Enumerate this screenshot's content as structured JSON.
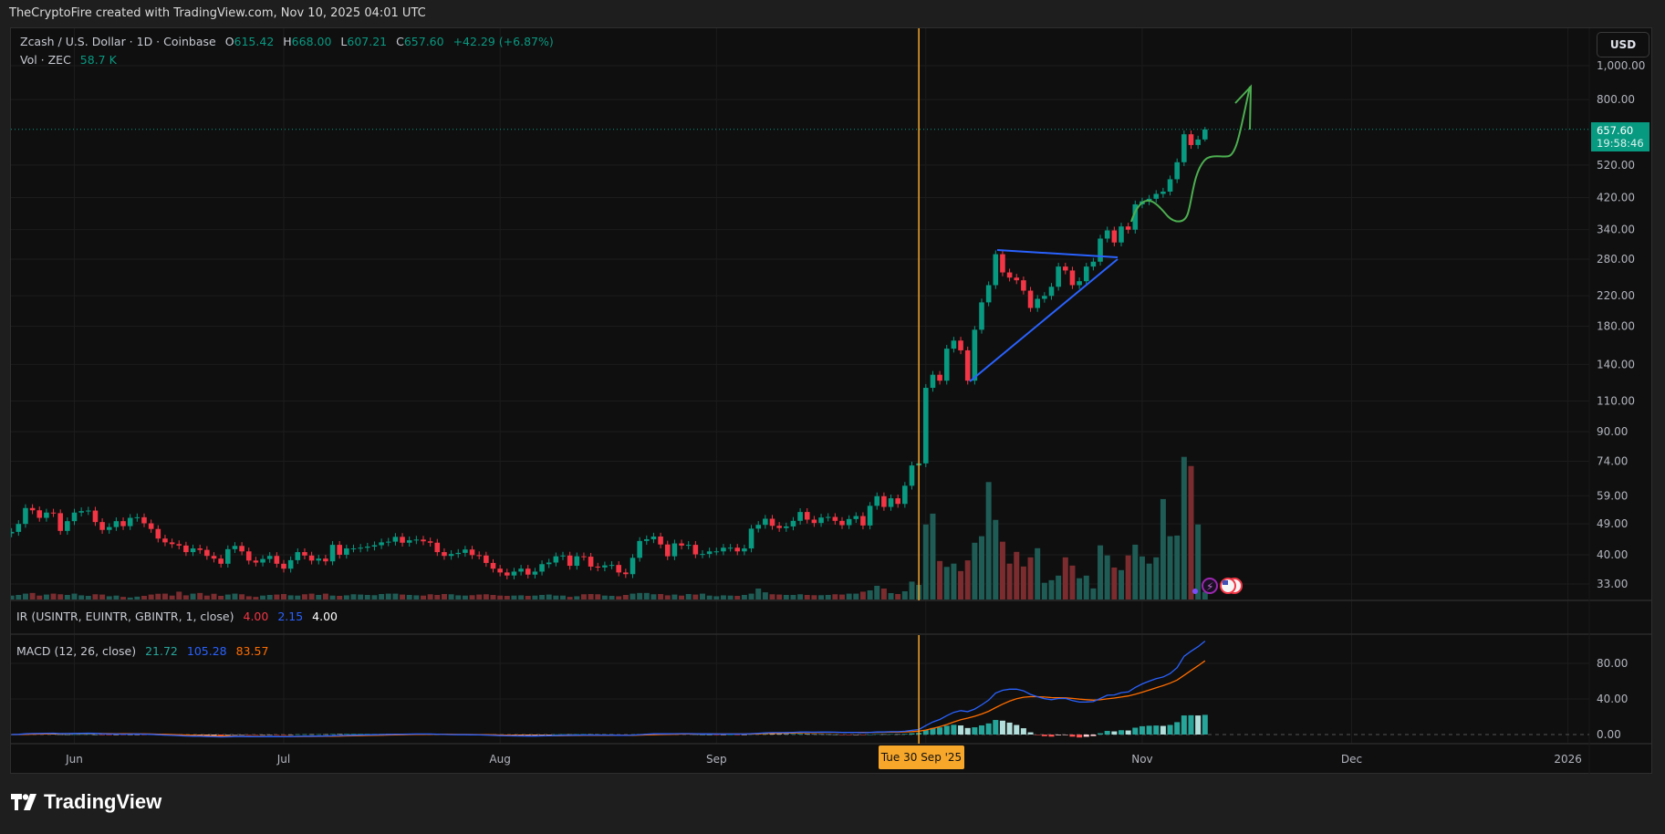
{
  "watermark_header": "TheCryptoFire created with TradingView.com, Nov 10, 2025 04:01 UTC",
  "footer": {
    "brand": "TradingView"
  },
  "symbol_legend": {
    "title": "Zcash / U.S. Dollar · 1D · Coinbase",
    "o_label": "O",
    "o": "615.42",
    "h_label": "H",
    "h": "668.00",
    "l_label": "L",
    "l": "607.21",
    "c_label": "C",
    "c": "657.60",
    "change": "+42.29 (+6.87%)"
  },
  "volume_legend": {
    "title": "Vol · ZEC",
    "value": "58.7 K"
  },
  "currency_button": "USD",
  "last_price": {
    "price": "657.60",
    "countdown": "19:58:46"
  },
  "crosshair": {
    "date": "2025-09-30",
    "label": "Tue 30 Sep '25"
  },
  "ir_legend": {
    "title": "IR (USINTR, EUINTR, GBINTR, 1, close)",
    "v1": "4.00",
    "v2": "2.15",
    "v3": "4.00"
  },
  "macd_legend": {
    "title": "MACD (12, 26, close)",
    "histogram": "21.72",
    "macd": "105.28",
    "signal": "83.57"
  },
  "colors": {
    "up": "#089981",
    "down": "#f23645",
    "crosshair": "#f7a72a",
    "macd": "#2962ff",
    "signal": "#ff6d00",
    "trendlines": "#2962ff",
    "projection": "#4caf50"
  },
  "chart_data": {
    "type": "candlestick",
    "scale": "log",
    "price_ticks": [
      {
        "value": 1000,
        "label": "1,000.00"
      },
      {
        "value": 800,
        "label": "800.00"
      },
      {
        "value": 520,
        "label": "520.00"
      },
      {
        "value": 420,
        "label": "420.00"
      },
      {
        "value": 340,
        "label": "340.00"
      },
      {
        "value": 280,
        "label": "280.00"
      },
      {
        "value": 220,
        "label": "220.00"
      },
      {
        "value": 180,
        "label": "180.00"
      },
      {
        "value": 140,
        "label": "140.00"
      },
      {
        "value": 110,
        "label": "110.00"
      },
      {
        "value": 90,
        "label": "90.00"
      },
      {
        "value": 74,
        "label": "74.00"
      },
      {
        "value": 59,
        "label": "59.00"
      },
      {
        "value": 49,
        "label": "49.00"
      },
      {
        "value": 40,
        "label": "40.00"
      },
      {
        "value": 33,
        "label": "33.00"
      }
    ],
    "time_ticks": [
      {
        "date": "2025-06-01",
        "label": "Jun"
      },
      {
        "date": "2025-07-01",
        "label": "Jul"
      },
      {
        "date": "2025-08-01",
        "label": "Aug"
      },
      {
        "date": "2025-09-01",
        "label": "Sep"
      },
      {
        "date": "2025-10-01",
        "label": ""
      },
      {
        "date": "2025-11-01",
        "label": "Nov"
      },
      {
        "date": "2025-12-01",
        "label": "Dec"
      },
      {
        "date": "2026-01-01",
        "label": "2026"
      }
    ],
    "macd_ticks": [
      {
        "value": 80,
        "label": "80.00"
      },
      {
        "value": 40,
        "label": "40.00"
      },
      {
        "value": 0,
        "label": "0.00"
      }
    ],
    "volume_unit": "K",
    "months": [
      {
        "month": "2025-05",
        "first_day": 23,
        "closes": [
          46.5,
          49.0,
          54.4,
          53.6,
          51.0,
          52.8,
          52.6,
          46.8,
          49.9
        ],
        "volumes": [
          30,
          35,
          45,
          50,
          30,
          38,
          45,
          40,
          35
        ]
      },
      {
        "month": "2025-06",
        "first_day": 1,
        "closes": [
          52.8,
          53.3,
          53.5,
          49.6,
          47.1,
          48.0,
          49.9,
          48.3,
          51.0,
          51.2,
          49.2,
          47.4,
          44.5,
          43.4,
          42.9,
          42.5,
          40.7,
          41.7,
          41.3,
          39.7,
          39.0,
          37.7,
          41.5,
          42.4,
          40.9,
          38.5,
          38.0,
          38.9,
          39.7,
          37.7
        ],
        "volumes": [
          45,
          32,
          28,
          40,
          38,
          25,
          30,
          20,
          15,
          22,
          28,
          38,
          44,
          45,
          30,
          60,
          32,
          45,
          50,
          30,
          44,
          28,
          38,
          45,
          40,
          25,
          20,
          30,
          35,
          38
        ]
      },
      {
        "month": "2025-07",
        "first_day": 1,
        "closes": [
          36.5,
          38.6,
          40.7,
          39.8,
          38.5,
          39.0,
          38.3,
          42.7,
          40.0,
          41.7,
          41.7,
          41.9,
          42.2,
          42.6,
          43.4,
          43.6,
          45.0,
          43.3,
          44.0,
          44.2,
          43.7,
          43.3,
          40.7,
          39.7,
          40.2,
          40.5,
          41.4,
          39.9,
          39.8,
          37.9,
          36.5
        ],
        "volumes": [
          42,
          32,
          30,
          40,
          45,
          35,
          45,
          30,
          28,
          32,
          40,
          38,
          35,
          33,
          42,
          45,
          45,
          38,
          35,
          32,
          30,
          40,
          35,
          42,
          40,
          32,
          30,
          33,
          38,
          40,
          35
        ]
      },
      {
        "month": "2025-08",
        "first_day": 1,
        "closes": [
          35.6,
          34.9,
          35.8,
          36.5,
          35.1,
          35.8,
          37.6,
          38.0,
          39.6,
          39.8,
          37.2,
          39.6,
          39.5,
          37.0,
          36.8,
          37.3,
          37.4,
          35.6,
          35.2,
          39.2,
          43.8,
          44.3,
          45.1,
          42.8,
          39.6,
          43.1,
          42.5,
          42.7,
          40.1,
          40.2,
          40.9
        ],
        "volumes": [
          30,
          28,
          30,
          32,
          28,
          30,
          35,
          38,
          30,
          30,
          20,
          25,
          40,
          42,
          40,
          30,
          28,
          25,
          35,
          45,
          50,
          50,
          40,
          42,
          32,
          38,
          30,
          42,
          38,
          45,
          30
        ]
      },
      {
        "month": "2025-09",
        "first_day": 1,
        "closes": [
          40.9,
          41.9,
          41.9,
          40.9,
          41.7,
          47.5,
          48.7,
          50.7,
          48.4,
          47.7,
          48.2,
          50.0,
          53.0,
          50.4,
          49.3,
          51.1,
          51.3,
          50.0,
          48.6,
          50.6,
          51.6,
          48.5,
          55.2,
          58.8,
          54.8,
          58.0,
          55.9,
          63.0,
          72.0,
          73.0
        ],
        "volumes": [
          25,
          32,
          30,
          28,
          35,
          45,
          84,
          55,
          40,
          38,
          35,
          35,
          40,
          35,
          33,
          33,
          35,
          40,
          38,
          45,
          45,
          60,
          70,
          105,
          84,
          49,
          42,
          63,
          137,
          112
        ]
      },
      {
        "month": "2025-10",
        "first_day": 1,
        "closes": [
          120,
          130.8,
          125.8,
          155.3,
          163.8,
          153.6,
          125.8,
          175.9,
          210.6,
          235.9,
          289.2,
          256.5,
          247.9,
          243.6,
          227.5,
          203,
          215.6,
          219.8,
          233.4,
          266.6,
          259.8,
          235.9,
          242.1,
          266.6,
          275.3,
          320.5,
          338.2,
          312.4,
          347.1,
          339.8,
          401.5
        ],
        "volumes": [
          575,
          658,
          295,
          250,
          275,
          218,
          300,
          435,
          485,
          900,
          610,
          443,
          275,
          365,
          253,
          323,
          393,
          128,
          148,
          183,
          323,
          260,
          163,
          183,
          85,
          415,
          338,
          245,
          225,
          338,
          420
        ]
      },
      {
        "month": "2025-11",
        "first_day": 1,
        "closes": [
          409.4,
          416.5,
          430.1,
          436.6,
          473.6,
          529.7,
          636.8,
          593.3,
          615.3,
          657.6
        ],
        "volumes": [
          330,
          275,
          323,
          770,
          485,
          490,
          1093,
          1023,
          575,
          58.7
        ]
      }
    ],
    "last_candle": {
      "open": 615.42,
      "high": 668.0,
      "low": 607.21,
      "close": 657.6
    }
  }
}
